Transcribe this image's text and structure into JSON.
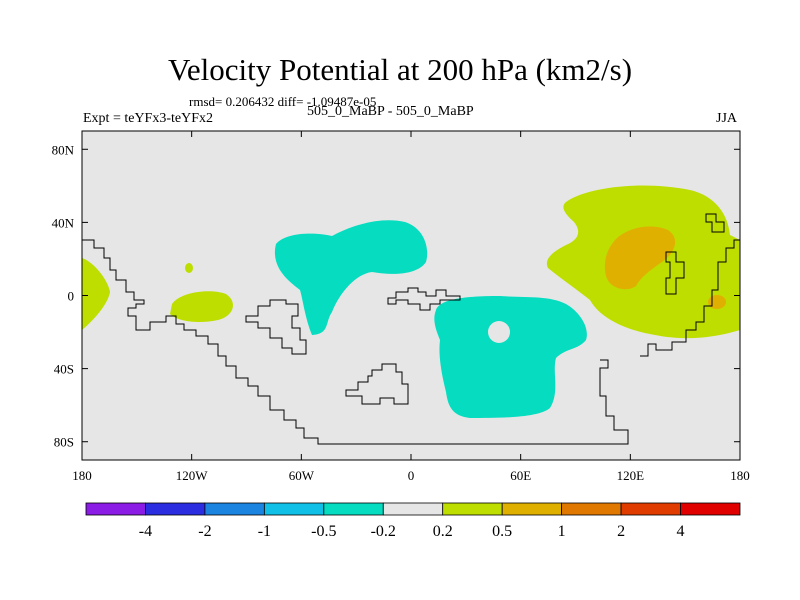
{
  "title": "Velocity Potential at 200 hPa (km2/s)",
  "stats_line": "rmsd= 0.206432 diff= -1.09487e-05",
  "experiment_label": "Expt = teYFx3-teYFx2",
  "run_label": "505_0_MaBP - 505_0_MaBP",
  "season_label": "JJA",
  "chart_data": {
    "type": "contour-map",
    "variable": "Velocity Potential at 200 hPa",
    "units": "km2/s",
    "x_axis": {
      "range": [
        -180,
        180
      ],
      "ticks": [
        -180,
        -120,
        -60,
        0,
        60,
        120,
        180
      ],
      "tick_labels": [
        "180",
        "120W",
        "60W",
        "0",
        "60E",
        "120E",
        "180"
      ]
    },
    "y_axis": {
      "range": [
        -90,
        90
      ],
      "ticks": [
        80,
        40,
        0,
        -40,
        -80
      ],
      "tick_labels": [
        "80N",
        "40N",
        "0",
        "40S",
        "80S"
      ]
    },
    "colorbar": {
      "levels": [
        "-4",
        "-2",
        "-1",
        "-0.5",
        "-0.2",
        "0.2",
        "0.5",
        "1",
        "2",
        "4"
      ],
      "colors": [
        "#8a1ce6",
        "#2a2ee0",
        "#1a84e0",
        "#10c0e6",
        "#06dcc0",
        "#e6e6e6",
        "#bede00",
        "#e0b000",
        "#e07800",
        "#e03c00",
        "#e00000"
      ]
    },
    "regions": [
      {
        "name": "positive-anomaly-east-asia",
        "class": "0.2 to 0.5"
      },
      {
        "name": "positive-maximum-asia",
        "class": "0.5 to 1"
      },
      {
        "name": "negative-anomaly-atlantic",
        "class": "-0.5 to -0.2"
      },
      {
        "name": "negative-anomaly-africa-indian-ocean",
        "class": "-0.5 to -0.2"
      },
      {
        "name": "positive-anomaly-east-pacific",
        "class": "0.2 to 0.5"
      },
      {
        "name": "positive-anomaly-dateline",
        "class": "0.2 to 0.5"
      }
    ]
  }
}
